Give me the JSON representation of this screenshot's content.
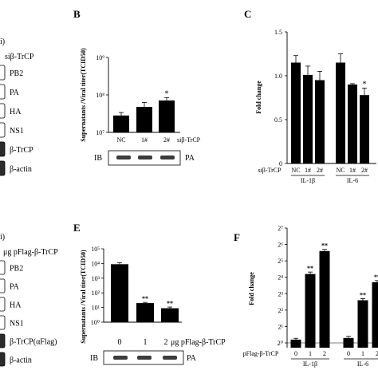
{
  "panels": {
    "A": {
      "cut_label": "i)",
      "sirna_label": "siβ-TrCP",
      "blots": [
        "PB2",
        "PA",
        "HA",
        "NS1",
        "β-TrCP",
        "β-actin"
      ]
    },
    "B": {
      "letter": "B",
      "ib_label": "IB",
      "ib_target": "PA"
    },
    "C": {
      "letter": "C",
      "sirna_row_label": "siβ-TrCP",
      "groups": [
        "IL-1β",
        "IL-6"
      ]
    },
    "D": {
      "cut_label": "i)",
      "header": "μg  pFlag-β-TrCP",
      "blots": [
        "PB2",
        "PA",
        "HA",
        "NS1",
        "β-TrCP(αFlag)",
        "β-actin"
      ]
    },
    "E": {
      "letter": "E",
      "ib_label": "IB",
      "ib_target": "PA"
    },
    "F": {
      "letter": "F",
      "row_label": "pFlag-β-TrCP",
      "groups": [
        "IL-1β",
        "IL-6"
      ]
    }
  },
  "chart_data": [
    {
      "id": "B",
      "type": "bar",
      "ylabel": "Supernatants /Viral titer(TCID50)",
      "yscale": "log",
      "ylim_exp": [
        7,
        9
      ],
      "ytick_labels": [
        "10⁷",
        "10⁸",
        "10⁹"
      ],
      "categories": [
        "NC",
        "1#",
        "2#"
      ],
      "category_suffix": "siβ-TrCP",
      "values_exp": [
        7.45,
        7.68,
        7.85
      ],
      "errors_exp": [
        0.08,
        0.12,
        0.08
      ],
      "annotations": [
        "",
        "",
        "*"
      ]
    },
    {
      "id": "C",
      "type": "bar",
      "ylabel": "Fold change",
      "ylim": [
        0,
        1.5
      ],
      "yticks": [
        0,
        0.5,
        1,
        1.5
      ],
      "ytick_labels": [
        "0",
        "0.5",
        "1.0",
        "1.5"
      ],
      "group_names": [
        "IL-1β",
        "IL-6"
      ],
      "categories": [
        "NC",
        "1#",
        "2#"
      ],
      "values": [
        [
          1.15,
          1.01,
          0.95
        ],
        [
          1.15,
          0.9,
          0.78
        ]
      ],
      "errors": [
        [
          0.08,
          0.1,
          0.1
        ],
        [
          0.1,
          0.01,
          0.08
        ]
      ],
      "annotations": [
        [
          "",
          "",
          ""
        ],
        [
          "",
          "",
          "*"
        ]
      ]
    },
    {
      "id": "E",
      "type": "bar",
      "ylabel": "Supernatants /Viral titer(TCID50)",
      "yscale": "log",
      "ylim_exp": [
        0,
        5
      ],
      "ytick_labels": [
        "10⁰",
        "10¹",
        "10²",
        "10³",
        "10⁴",
        "10⁵"
      ],
      "categories": [
        "0",
        "1",
        "2"
      ],
      "category_suffix": "μg pFlag-β-TrCP",
      "values_exp": [
        3.95,
        1.3,
        0.95
      ],
      "errors_exp": [
        0.1,
        0.05,
        0.08
      ],
      "annotations": [
        "",
        "**",
        "**"
      ]
    },
    {
      "id": "F",
      "type": "bar",
      "ylabel": "Fold change",
      "ylim_exp": [
        0,
        7
      ],
      "ytick_labels": [
        "2⁰",
        "2¹",
        "2²",
        "2³",
        "2⁴",
        "2⁵",
        "2⁶",
        "2⁷"
      ],
      "group_names": [
        "IL-1β",
        "IL-6"
      ],
      "categories": [
        "0",
        "1",
        "2"
      ],
      "values_exp": [
        [
          0.2,
          4.2,
          5.6
        ],
        [
          0.3,
          2.6,
          3.7
        ]
      ],
      "errors_exp": [
        [
          0.08,
          0.12,
          0.1
        ],
        [
          0.1,
          0.1,
          0.1
        ]
      ],
      "annotations": [
        [
          "",
          "**",
          "**"
        ],
        [
          "",
          "**",
          "**"
        ]
      ]
    }
  ]
}
